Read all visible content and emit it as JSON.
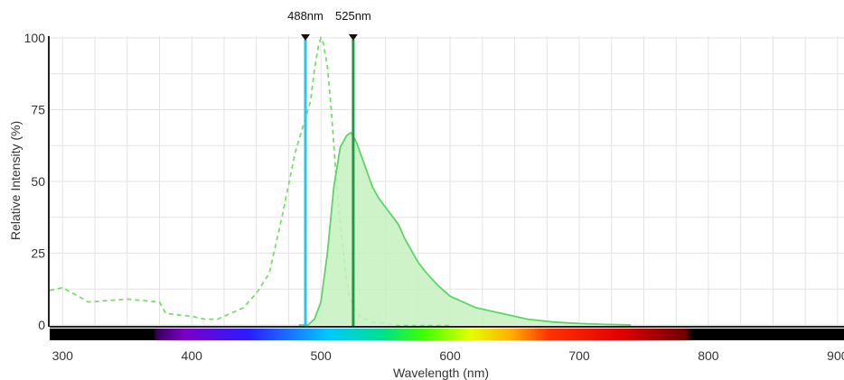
{
  "chart_data": {
    "type": "area",
    "xlabel": "Wavelength (nm)",
    "ylabel": "Relative Intensity (%)",
    "xlim": [
      290,
      905
    ],
    "ylim": [
      0,
      100
    ],
    "x_ticks": [
      300,
      400,
      500,
      600,
      700,
      800,
      900
    ],
    "y_ticks": [
      0,
      25,
      50,
      75,
      100
    ],
    "grid": true,
    "series": [
      {
        "style": "dashed-line",
        "color": "#7ddb6e",
        "x": [
          290,
          300,
          320,
          350,
          375,
          380,
          400,
          410,
          420,
          440,
          450,
          460,
          470,
          480,
          488,
          492,
          495,
          498,
          500,
          502,
          505,
          508,
          512,
          515,
          520,
          522,
          525,
          530,
          540,
          560,
          600
        ],
        "y": [
          12,
          13,
          8,
          9,
          8,
          4,
          3,
          2,
          2,
          6,
          11,
          18,
          38,
          60,
          72,
          78,
          89,
          97,
          100,
          98,
          90,
          75,
          50,
          35,
          15,
          10,
          6,
          3,
          1,
          0,
          0
        ]
      },
      {
        "style": "filled-area",
        "color": "#5fd36a",
        "fill": "#c6f1c0",
        "x": [
          483,
          490,
          495,
          500,
          505,
          510,
          515,
          520,
          523,
          525,
          528,
          532,
          536,
          540,
          545,
          550,
          555,
          560,
          565,
          570,
          575,
          580,
          590,
          600,
          620,
          640,
          660,
          680,
          700,
          720,
          740
        ],
        "y": [
          0,
          0,
          2,
          8,
          25,
          48,
          62,
          66,
          67,
          66,
          63,
          58,
          53,
          48,
          44,
          41,
          38,
          35,
          30,
          26,
          22,
          19,
          14,
          10,
          6,
          4,
          2,
          1,
          0.5,
          0.2,
          0
        ]
      }
    ],
    "markers": [
      {
        "label": "488nm",
        "x": 488,
        "color": "#29c5ee"
      },
      {
        "label": "525nm",
        "x": 525,
        "color": "#1e9a46"
      }
    ],
    "spectrum_bar": true
  }
}
